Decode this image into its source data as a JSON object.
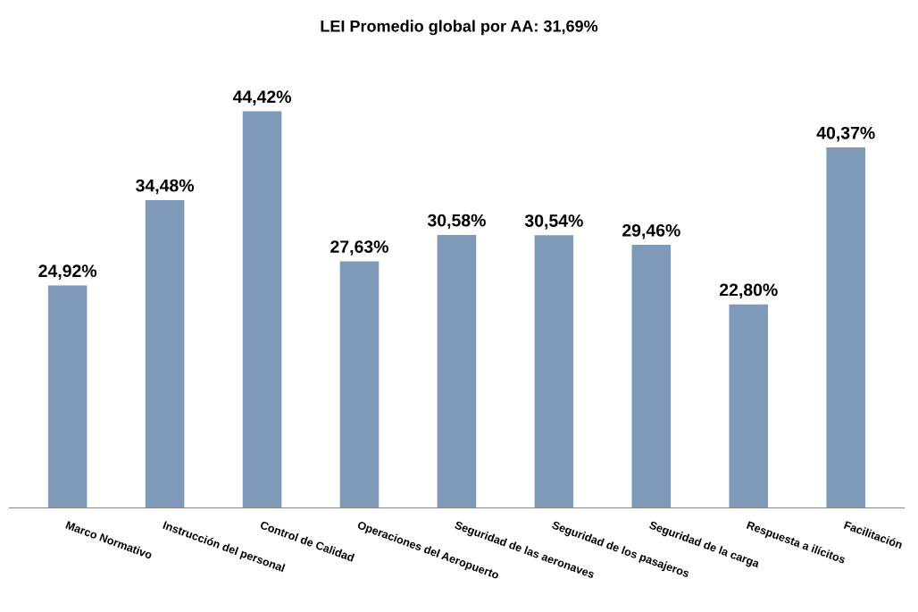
{
  "chart_data": {
    "type": "bar",
    "title": "LEI Promedio global por AA: 31,69%",
    "categories": [
      "Marco Normativo",
      "Instrucción del personal",
      "Control de Calidad",
      "Operaciones del Aeropuerto",
      "Seguridad de las aeronaves",
      "Seguridad de los pasajeros",
      "Seguridad de la carga",
      "Respuesta a ilícitos",
      "Facilitación"
    ],
    "values": [
      24.92,
      34.48,
      44.42,
      27.63,
      30.58,
      30.54,
      29.46,
      22.8,
      40.37
    ],
    "value_labels": [
      "24,92%",
      "34,48%",
      "44,42%",
      "27,63%",
      "30,58%",
      "30,54%",
      "29,46%",
      "22,80%",
      "40,37%"
    ],
    "color": "#7f9ab8",
    "grid": false,
    "legend": false,
    "tick_labels": "x"
  }
}
